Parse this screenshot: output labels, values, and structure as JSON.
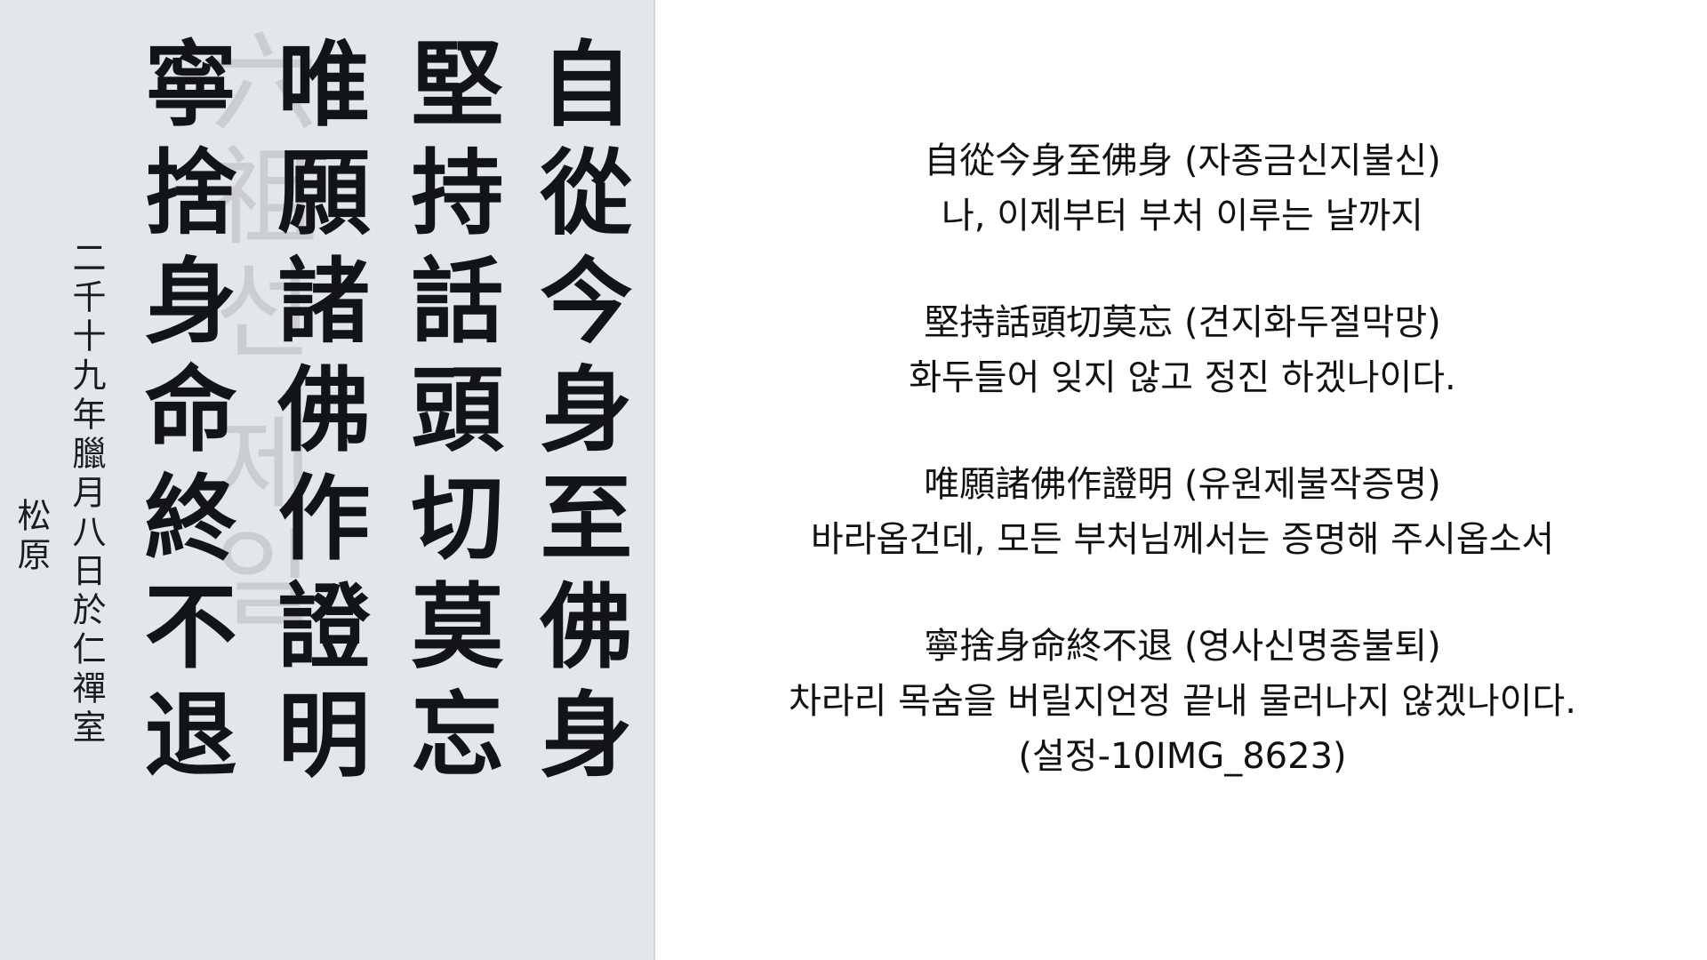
{
  "calligraphy": {
    "columns": [
      "自從今身至佛身",
      "堅持話頭切莫忘",
      "唯願諸佛作證明",
      "寧捨身命終不退"
    ],
    "date_inscription": "二千十九年臘月八日於仁禪室",
    "signature": "松原",
    "watermark": "六祖선 제일"
  },
  "verses": [
    {
      "hanja": "自從今身至佛身 (자종금신지불신)",
      "korean": "나, 이제부터 부처 이루는 날까지"
    },
    {
      "hanja": "堅持話頭切莫忘 (견지화두절막망)",
      "korean": "화두들어 잊지 않고 정진 하겠나이다."
    },
    {
      "hanja": "唯願諸佛作證明 (유원제불작증명)",
      "korean": "바라옵건데, 모든 부처님께서는 증명해 주시옵소서"
    },
    {
      "hanja": "寧捨身命終不退 (영사신명종불퇴)",
      "korean": "차라리 목숨을 버릴지언정 끝내 물러나지 않겠나이다."
    }
  ],
  "caption": "(설정-10IMG_8623)"
}
